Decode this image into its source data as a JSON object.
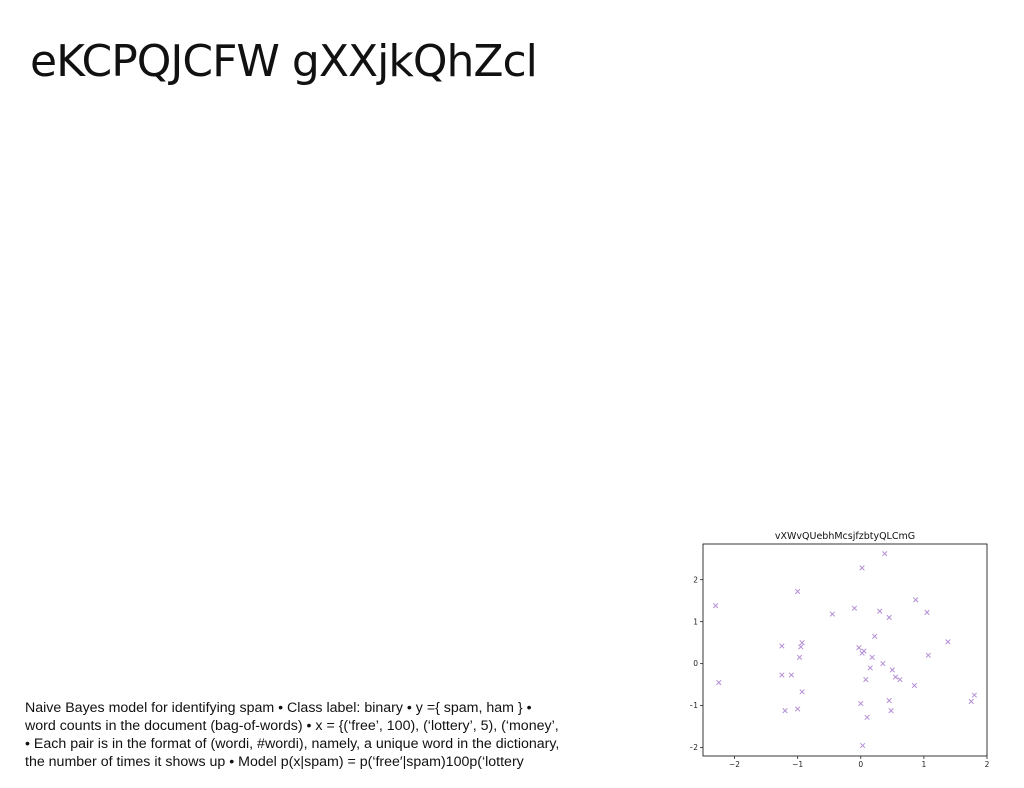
{
  "slide": {
    "title": "eKCPQJCFW gXXjkQhZcl",
    "body_lines": [
      "Naive Bayes model for identifying spam • Class label: binary • y ={ spam, ham } •",
      "word counts in the document (bag-of-words) • x = {(‘free’, 100), (‘lottery’, 5), (‘money’,",
      "• Each pair is in the format of (wordi, #wordi), namely, a unique word in the dictionary,",
      "the number of times it shows up • Model p(x|spam) = p(‘free′|spam)100p(‘lottery"
    ]
  },
  "colors": {
    "marker": "#b48fd6",
    "text": "#111111"
  },
  "chart_data": {
    "type": "scatter",
    "title": "vXWvQUebhMcsjfzbtyQLCmG",
    "xlabel": "",
    "ylabel": "",
    "xlim": [
      -2.5,
      2.0
    ],
    "ylim": [
      -2.2,
      2.85
    ],
    "xticks": [
      -2,
      -1,
      0,
      1,
      2
    ],
    "yticks": [
      -2,
      -1,
      0,
      1,
      2
    ],
    "marker": "x",
    "grid": false,
    "points": [
      [
        -2.3,
        1.38
      ],
      [
        -2.25,
        -0.45
      ],
      [
        -1.25,
        0.42
      ],
      [
        -1.25,
        -0.27
      ],
      [
        -1.2,
        -1.12
      ],
      [
        -1.1,
        -0.27
      ],
      [
        -1.0,
        1.72
      ],
      [
        -1.0,
        -1.08
      ],
      [
        -0.97,
        0.15
      ],
      [
        -0.95,
        0.4
      ],
      [
        -0.93,
        0.5
      ],
      [
        -0.93,
        -0.67
      ],
      [
        -0.45,
        1.18
      ],
      [
        -0.1,
        1.32
      ],
      [
        -0.03,
        0.38
      ],
      [
        0.0,
        -0.95
      ],
      [
        0.02,
        2.28
      ],
      [
        0.02,
        0.25
      ],
      [
        0.03,
        -1.95
      ],
      [
        0.05,
        0.3
      ],
      [
        0.08,
        -0.38
      ],
      [
        0.1,
        -1.28
      ],
      [
        0.15,
        -0.1
      ],
      [
        0.18,
        0.15
      ],
      [
        0.22,
        0.65
      ],
      [
        0.3,
        1.25
      ],
      [
        0.35,
        0.0
      ],
      [
        0.38,
        2.62
      ],
      [
        0.45,
        1.1
      ],
      [
        0.45,
        -0.88
      ],
      [
        0.48,
        -1.12
      ],
      [
        0.5,
        -0.15
      ],
      [
        0.55,
        -0.32
      ],
      [
        0.62,
        -0.38
      ],
      [
        0.85,
        -0.52
      ],
      [
        0.87,
        1.52
      ],
      [
        1.05,
        1.22
      ],
      [
        1.07,
        0.2
      ],
      [
        1.38,
        0.52
      ],
      [
        1.75,
        -0.9
      ],
      [
        1.8,
        -0.75
      ]
    ]
  }
}
